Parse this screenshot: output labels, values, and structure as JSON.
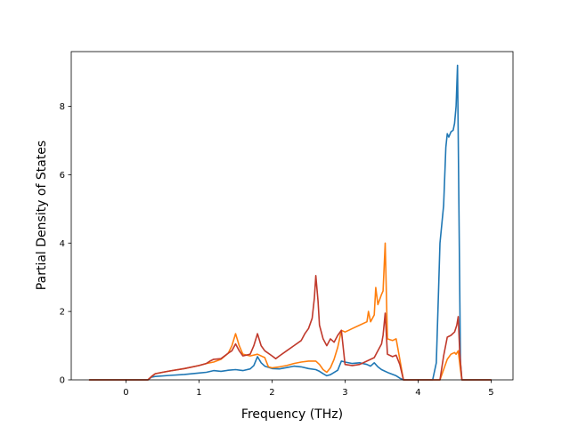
{
  "chart_data": {
    "type": "line",
    "title": "",
    "xlabel": "Frequency (THz)",
    "ylabel": "Partial Density of States",
    "xlim": [
      -0.75,
      5.3
    ],
    "ylim": [
      0,
      9.6
    ],
    "xticks": [
      0,
      1,
      2,
      3,
      4,
      5
    ],
    "yticks": [
      0,
      2,
      4,
      6,
      8
    ],
    "grid": false,
    "legend": "none",
    "series": [
      {
        "color": "#1f77b4",
        "points": [
          [
            -0.5,
            0
          ],
          [
            0.3,
            0
          ],
          [
            0.35,
            0.08
          ],
          [
            0.4,
            0.1
          ],
          [
            0.6,
            0.13
          ],
          [
            0.8,
            0.16
          ],
          [
            1.0,
            0.2
          ],
          [
            1.1,
            0.22
          ],
          [
            1.2,
            0.27
          ],
          [
            1.3,
            0.25
          ],
          [
            1.4,
            0.28
          ],
          [
            1.5,
            0.3
          ],
          [
            1.6,
            0.27
          ],
          [
            1.7,
            0.32
          ],
          [
            1.75,
            0.42
          ],
          [
            1.8,
            0.68
          ],
          [
            1.85,
            0.5
          ],
          [
            1.9,
            0.4
          ],
          [
            2.0,
            0.33
          ],
          [
            2.1,
            0.32
          ],
          [
            2.2,
            0.36
          ],
          [
            2.3,
            0.4
          ],
          [
            2.4,
            0.38
          ],
          [
            2.5,
            0.33
          ],
          [
            2.6,
            0.3
          ],
          [
            2.65,
            0.25
          ],
          [
            2.7,
            0.18
          ],
          [
            2.75,
            0.12
          ],
          [
            2.8,
            0.15
          ],
          [
            2.9,
            0.28
          ],
          [
            2.95,
            0.55
          ],
          [
            3.0,
            0.52
          ],
          [
            3.1,
            0.48
          ],
          [
            3.2,
            0.5
          ],
          [
            3.3,
            0.45
          ],
          [
            3.35,
            0.4
          ],
          [
            3.4,
            0.5
          ],
          [
            3.45,
            0.38
          ],
          [
            3.5,
            0.3
          ],
          [
            3.6,
            0.2
          ],
          [
            3.7,
            0.12
          ],
          [
            3.75,
            0.05
          ],
          [
            3.8,
            0
          ],
          [
            4.2,
            0
          ],
          [
            4.25,
            0.5
          ],
          [
            4.28,
            2.6
          ],
          [
            4.3,
            4.0
          ],
          [
            4.35,
            5.1
          ],
          [
            4.38,
            6.8
          ],
          [
            4.4,
            7.2
          ],
          [
            4.42,
            7.1
          ],
          [
            4.45,
            7.25
          ],
          [
            4.48,
            7.3
          ],
          [
            4.5,
            7.5
          ],
          [
            4.52,
            8.0
          ],
          [
            4.54,
            9.2
          ],
          [
            4.56,
            5.0
          ],
          [
            4.58,
            0.5
          ],
          [
            4.6,
            0
          ],
          [
            5.0,
            0
          ]
        ]
      },
      {
        "color": "#ff7f0e",
        "points": [
          [
            -0.5,
            0
          ],
          [
            0.3,
            0
          ],
          [
            0.35,
            0.1
          ],
          [
            0.4,
            0.18
          ],
          [
            0.5,
            0.22
          ],
          [
            0.6,
            0.26
          ],
          [
            0.8,
            0.33
          ],
          [
            1.0,
            0.42
          ],
          [
            1.1,
            0.48
          ],
          [
            1.2,
            0.52
          ],
          [
            1.3,
            0.6
          ],
          [
            1.4,
            0.78
          ],
          [
            1.45,
            1.0
          ],
          [
            1.5,
            1.35
          ],
          [
            1.55,
            1.0
          ],
          [
            1.6,
            0.75
          ],
          [
            1.7,
            0.7
          ],
          [
            1.8,
            0.75
          ],
          [
            1.9,
            0.65
          ],
          [
            1.95,
            0.38
          ],
          [
            2.0,
            0.35
          ],
          [
            2.1,
            0.38
          ],
          [
            2.2,
            0.42
          ],
          [
            2.3,
            0.48
          ],
          [
            2.4,
            0.52
          ],
          [
            2.5,
            0.55
          ],
          [
            2.6,
            0.55
          ],
          [
            2.65,
            0.45
          ],
          [
            2.7,
            0.3
          ],
          [
            2.75,
            0.22
          ],
          [
            2.8,
            0.35
          ],
          [
            2.85,
            0.6
          ],
          [
            2.9,
            0.95
          ],
          [
            2.95,
            1.45
          ],
          [
            3.0,
            1.4
          ],
          [
            3.05,
            1.45
          ],
          [
            3.1,
            1.5
          ],
          [
            3.2,
            1.6
          ],
          [
            3.3,
            1.7
          ],
          [
            3.32,
            2.0
          ],
          [
            3.35,
            1.7
          ],
          [
            3.4,
            1.9
          ],
          [
            3.42,
            2.7
          ],
          [
            3.45,
            2.2
          ],
          [
            3.5,
            2.5
          ],
          [
            3.52,
            2.6
          ],
          [
            3.55,
            4.0
          ],
          [
            3.58,
            1.2
          ],
          [
            3.65,
            1.15
          ],
          [
            3.7,
            1.2
          ],
          [
            3.75,
            0.6
          ],
          [
            3.8,
            0
          ],
          [
            4.3,
            0
          ],
          [
            4.35,
            0.3
          ],
          [
            4.4,
            0.6
          ],
          [
            4.45,
            0.75
          ],
          [
            4.5,
            0.8
          ],
          [
            4.52,
            0.75
          ],
          [
            4.55,
            0.85
          ],
          [
            4.58,
            0.3
          ],
          [
            4.6,
            0
          ],
          [
            5.0,
            0
          ]
        ]
      },
      {
        "color": "#c0392b",
        "points": [
          [
            -0.5,
            0
          ],
          [
            0.3,
            0
          ],
          [
            0.35,
            0.1
          ],
          [
            0.4,
            0.18
          ],
          [
            0.5,
            0.22
          ],
          [
            0.6,
            0.26
          ],
          [
            0.8,
            0.33
          ],
          [
            1.0,
            0.42
          ],
          [
            1.1,
            0.48
          ],
          [
            1.15,
            0.55
          ],
          [
            1.2,
            0.6
          ],
          [
            1.3,
            0.62
          ],
          [
            1.4,
            0.78
          ],
          [
            1.45,
            0.85
          ],
          [
            1.5,
            1.05
          ],
          [
            1.55,
            0.85
          ],
          [
            1.6,
            0.7
          ],
          [
            1.7,
            0.75
          ],
          [
            1.75,
            1.0
          ],
          [
            1.8,
            1.35
          ],
          [
            1.85,
            1.0
          ],
          [
            1.9,
            0.85
          ],
          [
            2.0,
            0.7
          ],
          [
            2.05,
            0.62
          ],
          [
            2.1,
            0.7
          ],
          [
            2.2,
            0.85
          ],
          [
            2.3,
            1.0
          ],
          [
            2.4,
            1.15
          ],
          [
            2.45,
            1.35
          ],
          [
            2.5,
            1.5
          ],
          [
            2.55,
            1.8
          ],
          [
            2.58,
            2.4
          ],
          [
            2.6,
            3.05
          ],
          [
            2.63,
            2.3
          ],
          [
            2.65,
            1.6
          ],
          [
            2.7,
            1.2
          ],
          [
            2.75,
            1.0
          ],
          [
            2.8,
            1.2
          ],
          [
            2.85,
            1.1
          ],
          [
            2.9,
            1.3
          ],
          [
            2.95,
            1.45
          ],
          [
            3.0,
            0.45
          ],
          [
            3.1,
            0.42
          ],
          [
            3.2,
            0.45
          ],
          [
            3.3,
            0.55
          ],
          [
            3.4,
            0.65
          ],
          [
            3.45,
            0.85
          ],
          [
            3.5,
            1.05
          ],
          [
            3.52,
            1.3
          ],
          [
            3.55,
            1.95
          ],
          [
            3.58,
            0.75
          ],
          [
            3.65,
            0.68
          ],
          [
            3.7,
            0.72
          ],
          [
            3.75,
            0.45
          ],
          [
            3.8,
            0
          ],
          [
            4.3,
            0
          ],
          [
            4.35,
            0.7
          ],
          [
            4.4,
            1.25
          ],
          [
            4.45,
            1.3
          ],
          [
            4.5,
            1.4
          ],
          [
            4.53,
            1.6
          ],
          [
            4.55,
            1.85
          ],
          [
            4.57,
            0.8
          ],
          [
            4.6,
            0
          ],
          [
            5.0,
            0
          ]
        ]
      }
    ]
  }
}
